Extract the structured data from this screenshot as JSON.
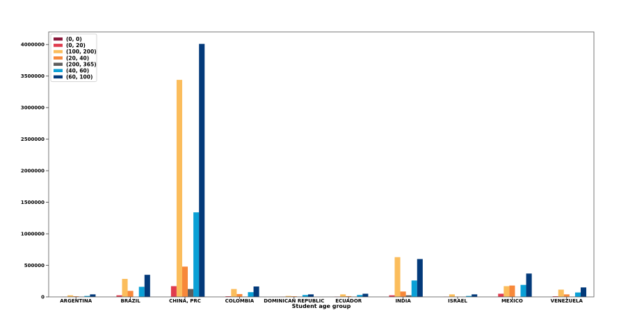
{
  "chart_data": {
    "type": "bar",
    "title": "",
    "xlabel": "Student age group",
    "ylabel": "",
    "ylim": [
      0,
      4200000
    ],
    "yticks": [
      0,
      500000,
      1000000,
      1500000,
      2000000,
      2500000,
      3000000,
      3500000,
      4000000
    ],
    "ytick_labels": [
      "0",
      "500000",
      "1000000",
      "1500000",
      "2000000",
      "2500000",
      "3000000",
      "3500000",
      "4000000"
    ],
    "grid": false,
    "legend_position": "top-left",
    "categories": [
      "ARGENTINA",
      "BRAZIL",
      "CHINA, PRC",
      "COLOMBIA",
      "DOMINICAN REPUBLIC",
      "ECUADOR",
      "INDIA",
      "ISRAEL",
      "MEXICO",
      "VENEZUELA"
    ],
    "series": [
      {
        "name": "(0, 0)",
        "color": "#8b1a3c",
        "values": [
          0,
          0,
          0,
          0,
          0,
          0,
          0,
          0,
          0,
          0
        ]
      },
      {
        "name": "(0, 20)",
        "color": "#e03b4d",
        "values": [
          2000,
          25000,
          170000,
          10000,
          3000,
          5000,
          25000,
          3000,
          50000,
          10000
        ]
      },
      {
        "name": "(100, 200)",
        "color": "#fbbd5c",
        "values": [
          25000,
          285000,
          3440000,
          125000,
          15000,
          40000,
          630000,
          40000,
          170000,
          115000
        ]
      },
      {
        "name": "(20, 40)",
        "color": "#f7883a",
        "values": [
          10000,
          95000,
          480000,
          45000,
          10000,
          12000,
          85000,
          5000,
          180000,
          40000
        ]
      },
      {
        "name": "(200, 365)",
        "color": "#5d5d5d",
        "values": [
          3000,
          0,
          125000,
          5000,
          3000,
          5000,
          25000,
          2000,
          0,
          5000
        ]
      },
      {
        "name": "(40, 60)",
        "color": "#0aa0d6",
        "values": [
          15000,
          160000,
          1340000,
          75000,
          30000,
          30000,
          260000,
          15000,
          190000,
          70000
        ]
      },
      {
        "name": "(60, 100)",
        "color": "#033a7a",
        "values": [
          40000,
          350000,
          4010000,
          165000,
          40000,
          50000,
          600000,
          40000,
          370000,
          150000
        ]
      }
    ]
  }
}
